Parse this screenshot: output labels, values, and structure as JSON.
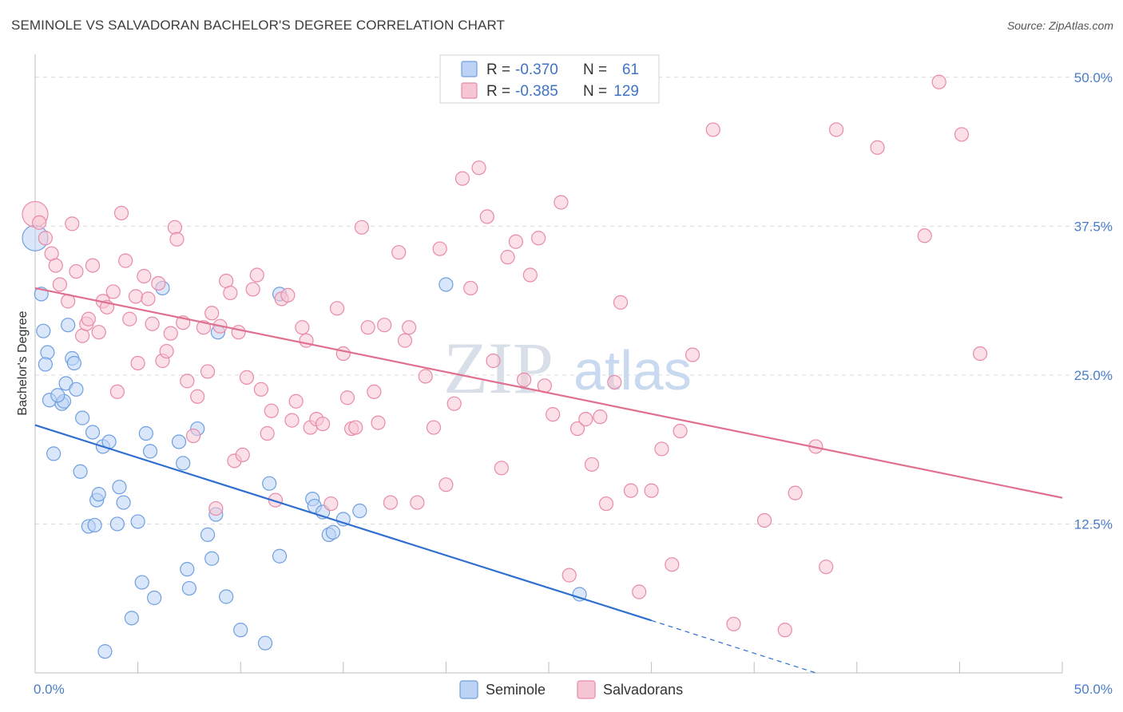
{
  "header": {
    "title": "SEMINOLE VS SALVADORAN BACHELOR'S DEGREE CORRELATION CHART",
    "source": "Source: ZipAtlas.com"
  },
  "watermark": {
    "zip": "ZIP",
    "atlas": "atlas"
  },
  "legend_top": {
    "rows": [
      {
        "r_label": "R =",
        "r_value": "-0.370",
        "n_label": "N =",
        "n_value": "61",
        "color": "#6f9fe0",
        "fill": "#bcd3f5"
      },
      {
        "r_label": "R =",
        "r_value": "-0.385",
        "n_label": "N =",
        "n_value": "129",
        "color": "#e88aa8",
        "fill": "#f7c6d4"
      }
    ]
  },
  "legend_bottom": {
    "items": [
      {
        "label": "Seminole",
        "color": "#6f9fe0",
        "fill": "#bcd3f5"
      },
      {
        "label": "Salvadorans",
        "color": "#e88aa8",
        "fill": "#f7c6d4"
      }
    ]
  },
  "chart_data": {
    "type": "scatter",
    "title": "SEMINOLE VS SALVADORAN BACHELOR'S DEGREE CORRELATION CHART",
    "xlabel": "",
    "ylabel": "Bachelor's Degree",
    "xlim": [
      0,
      50
    ],
    "ylim": [
      0,
      50
    ],
    "x_tick_labels": [
      "0.0%",
      "50.0%"
    ],
    "y_tick_labels": [
      "12.5%",
      "25.0%",
      "37.5%",
      "50.0%"
    ],
    "y_ticks": [
      12.5,
      25.0,
      37.5,
      50.0
    ],
    "grid": true,
    "legend_position": "top-center",
    "series": [
      {
        "name": "Seminole",
        "color": "#4a86d8",
        "r": -0.37,
        "n": 61,
        "trend": {
          "x": [
            0,
            30
          ],
          "y": [
            20.8,
            4.4
          ],
          "dashed_to": [
            38,
            0
          ]
        },
        "points": [
          [
            0,
            36.5
          ],
          [
            0.3,
            31.8
          ],
          [
            0.4,
            28.7
          ],
          [
            0.6,
            26.9
          ],
          [
            0.5,
            25.9
          ],
          [
            0.9,
            18.4
          ],
          [
            0.7,
            22.9
          ],
          [
            1.3,
            22.6
          ],
          [
            1.4,
            22.8
          ],
          [
            1.1,
            23.3
          ],
          [
            1.6,
            29.2
          ],
          [
            1.5,
            24.3
          ],
          [
            1.8,
            26.4
          ],
          [
            1.9,
            26.0
          ],
          [
            2.0,
            23.8
          ],
          [
            2.3,
            21.4
          ],
          [
            2.2,
            16.9
          ],
          [
            2.6,
            12.3
          ],
          [
            2.8,
            20.2
          ],
          [
            2.9,
            12.4
          ],
          [
            3.0,
            14.5
          ],
          [
            3.1,
            15.0
          ],
          [
            3.3,
            19.0
          ],
          [
            3.6,
            19.4
          ],
          [
            3.4,
            1.8
          ],
          [
            4.0,
            12.5
          ],
          [
            4.1,
            15.6
          ],
          [
            4.3,
            14.3
          ],
          [
            4.7,
            4.6
          ],
          [
            5.0,
            12.7
          ],
          [
            5.2,
            7.6
          ],
          [
            5.4,
            20.1
          ],
          [
            5.6,
            18.6
          ],
          [
            5.8,
            6.3
          ],
          [
            6.2,
            32.3
          ],
          [
            7.0,
            19.4
          ],
          [
            7.2,
            17.6
          ],
          [
            7.4,
            8.7
          ],
          [
            7.5,
            7.1
          ],
          [
            7.9,
            20.5
          ],
          [
            8.4,
            11.6
          ],
          [
            8.6,
            9.6
          ],
          [
            8.8,
            13.3
          ],
          [
            8.9,
            28.6
          ],
          [
            9.3,
            6.4
          ],
          [
            10.0,
            3.6
          ],
          [
            11.2,
            2.5
          ],
          [
            11.4,
            15.9
          ],
          [
            11.9,
            9.8
          ],
          [
            11.9,
            31.8
          ],
          [
            13.5,
            14.6
          ],
          [
            13.6,
            14.0
          ],
          [
            14.0,
            13.5
          ],
          [
            14.3,
            11.6
          ],
          [
            14.5,
            11.8
          ],
          [
            15.0,
            12.9
          ],
          [
            15.8,
            13.6
          ],
          [
            20.0,
            32.6
          ],
          [
            26.5,
            6.6
          ]
        ]
      },
      {
        "name": "Salvadorans",
        "color": "#e0708f",
        "r": -0.385,
        "n": 129,
        "trend": {
          "x": [
            0,
            50
          ],
          "y": [
            32.3,
            14.7
          ]
        },
        "points": [
          [
            0,
            38.5
          ],
          [
            0.2,
            37.8
          ],
          [
            0.5,
            36.5
          ],
          [
            0.8,
            35.2
          ],
          [
            1.0,
            34.2
          ],
          [
            1.2,
            32.6
          ],
          [
            1.6,
            31.2
          ],
          [
            1.8,
            37.7
          ],
          [
            2.0,
            33.7
          ],
          [
            2.3,
            28.3
          ],
          [
            2.5,
            29.3
          ],
          [
            2.6,
            29.7
          ],
          [
            2.8,
            34.2
          ],
          [
            3.1,
            28.6
          ],
          [
            3.3,
            31.2
          ],
          [
            3.5,
            30.7
          ],
          [
            3.8,
            32.0
          ],
          [
            4.0,
            23.6
          ],
          [
            4.2,
            38.6
          ],
          [
            4.4,
            34.6
          ],
          [
            4.6,
            29.7
          ],
          [
            4.9,
            31.6
          ],
          [
            5.0,
            26.0
          ],
          [
            5.3,
            33.3
          ],
          [
            5.5,
            31.4
          ],
          [
            5.7,
            29.3
          ],
          [
            6.0,
            32.7
          ],
          [
            6.2,
            26.2
          ],
          [
            6.4,
            27.0
          ],
          [
            6.6,
            28.5
          ],
          [
            6.8,
            37.4
          ],
          [
            6.9,
            36.4
          ],
          [
            7.2,
            29.4
          ],
          [
            7.4,
            24.5
          ],
          [
            7.7,
            19.9
          ],
          [
            7.9,
            23.2
          ],
          [
            8.2,
            29.0
          ],
          [
            8.4,
            25.3
          ],
          [
            8.6,
            30.2
          ],
          [
            8.8,
            13.8
          ],
          [
            9.0,
            29.1
          ],
          [
            9.3,
            32.9
          ],
          [
            9.5,
            31.9
          ],
          [
            9.7,
            17.8
          ],
          [
            9.9,
            28.6
          ],
          [
            10.1,
            18.3
          ],
          [
            10.3,
            24.8
          ],
          [
            10.6,
            32.2
          ],
          [
            10.8,
            33.4
          ],
          [
            11.0,
            23.8
          ],
          [
            11.3,
            20.1
          ],
          [
            11.5,
            22.0
          ],
          [
            11.7,
            14.5
          ],
          [
            12.0,
            31.4
          ],
          [
            12.3,
            31.7
          ],
          [
            12.5,
            21.2
          ],
          [
            12.7,
            22.8
          ],
          [
            13.0,
            29.0
          ],
          [
            13.2,
            27.9
          ],
          [
            13.4,
            20.6
          ],
          [
            13.7,
            21.3
          ],
          [
            14.0,
            20.9
          ],
          [
            14.4,
            14.2
          ],
          [
            14.7,
            30.6
          ],
          [
            15.0,
            26.8
          ],
          [
            15.2,
            23.1
          ],
          [
            15.4,
            20.5
          ],
          [
            15.6,
            20.6
          ],
          [
            15.9,
            37.4
          ],
          [
            16.2,
            29.0
          ],
          [
            16.5,
            23.6
          ],
          [
            16.7,
            21.0
          ],
          [
            17.0,
            29.2
          ],
          [
            17.3,
            14.3
          ],
          [
            17.7,
            35.3
          ],
          [
            18.0,
            27.9
          ],
          [
            18.2,
            29.0
          ],
          [
            18.6,
            14.3
          ],
          [
            19.0,
            24.9
          ],
          [
            19.4,
            20.6
          ],
          [
            19.7,
            35.6
          ],
          [
            20.0,
            15.8
          ],
          [
            20.4,
            22.6
          ],
          [
            20.8,
            41.5
          ],
          [
            21.2,
            32.3
          ],
          [
            21.6,
            42.4
          ],
          [
            22.0,
            38.3
          ],
          [
            22.3,
            26.2
          ],
          [
            22.7,
            17.2
          ],
          [
            23.0,
            34.9
          ],
          [
            23.4,
            36.2
          ],
          [
            23.8,
            24.6
          ],
          [
            24.1,
            33.4
          ],
          [
            24.5,
            36.5
          ],
          [
            24.8,
            24.1
          ],
          [
            25.2,
            21.7
          ],
          [
            25.6,
            39.5
          ],
          [
            26.0,
            8.2
          ],
          [
            26.4,
            20.5
          ],
          [
            26.8,
            21.3
          ],
          [
            27.1,
            17.5
          ],
          [
            27.5,
            21.5
          ],
          [
            27.8,
            14.2
          ],
          [
            28.2,
            24.4
          ],
          [
            28.5,
            31.1
          ],
          [
            29.0,
            15.3
          ],
          [
            29.4,
            6.8
          ],
          [
            30.0,
            15.3
          ],
          [
            30.5,
            18.8
          ],
          [
            31.0,
            9.1
          ],
          [
            31.4,
            20.3
          ],
          [
            32.0,
            26.7
          ],
          [
            33.0,
            45.6
          ],
          [
            34.0,
            4.1
          ],
          [
            35.5,
            12.8
          ],
          [
            36.5,
            3.6
          ],
          [
            37.0,
            15.1
          ],
          [
            38.0,
            19.0
          ],
          [
            38.5,
            8.9
          ],
          [
            39.0,
            45.6
          ],
          [
            41.0,
            44.1
          ],
          [
            43.3,
            36.7
          ],
          [
            44.0,
            49.6
          ],
          [
            45.1,
            45.2
          ],
          [
            46.0,
            26.8
          ]
        ]
      }
    ]
  }
}
